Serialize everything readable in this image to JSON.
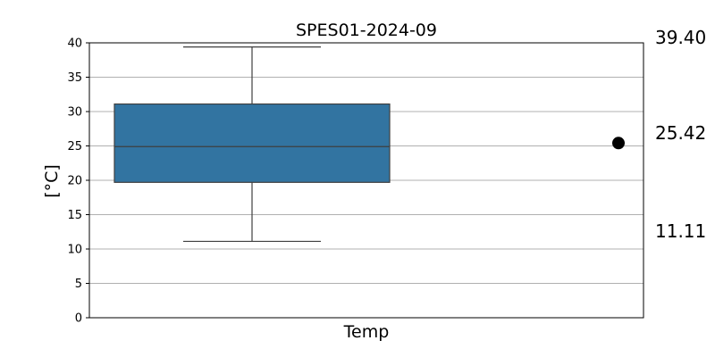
{
  "chart_data": {
    "type": "box",
    "title": "SPES01-2024-09",
    "xlabel": "Temp",
    "ylabel": "[°C]",
    "ylim": [
      0,
      40
    ],
    "yticks": [
      0,
      5,
      10,
      15,
      20,
      25,
      30,
      35,
      40
    ],
    "grid": "horizontal",
    "box": {
      "category": "Temp",
      "whisker_low": 11.11,
      "q1": 19.7,
      "median": 24.9,
      "q3": 31.1,
      "whisker_high": 39.4,
      "color": "#3274a1"
    },
    "marker": {
      "value": 25.42,
      "color": "#000000"
    },
    "side_labels": [
      {
        "value": 39.4,
        "text": "39.40"
      },
      {
        "value": 25.42,
        "text": "25.42"
      },
      {
        "value": 11.11,
        "text": "11.11"
      }
    ]
  }
}
